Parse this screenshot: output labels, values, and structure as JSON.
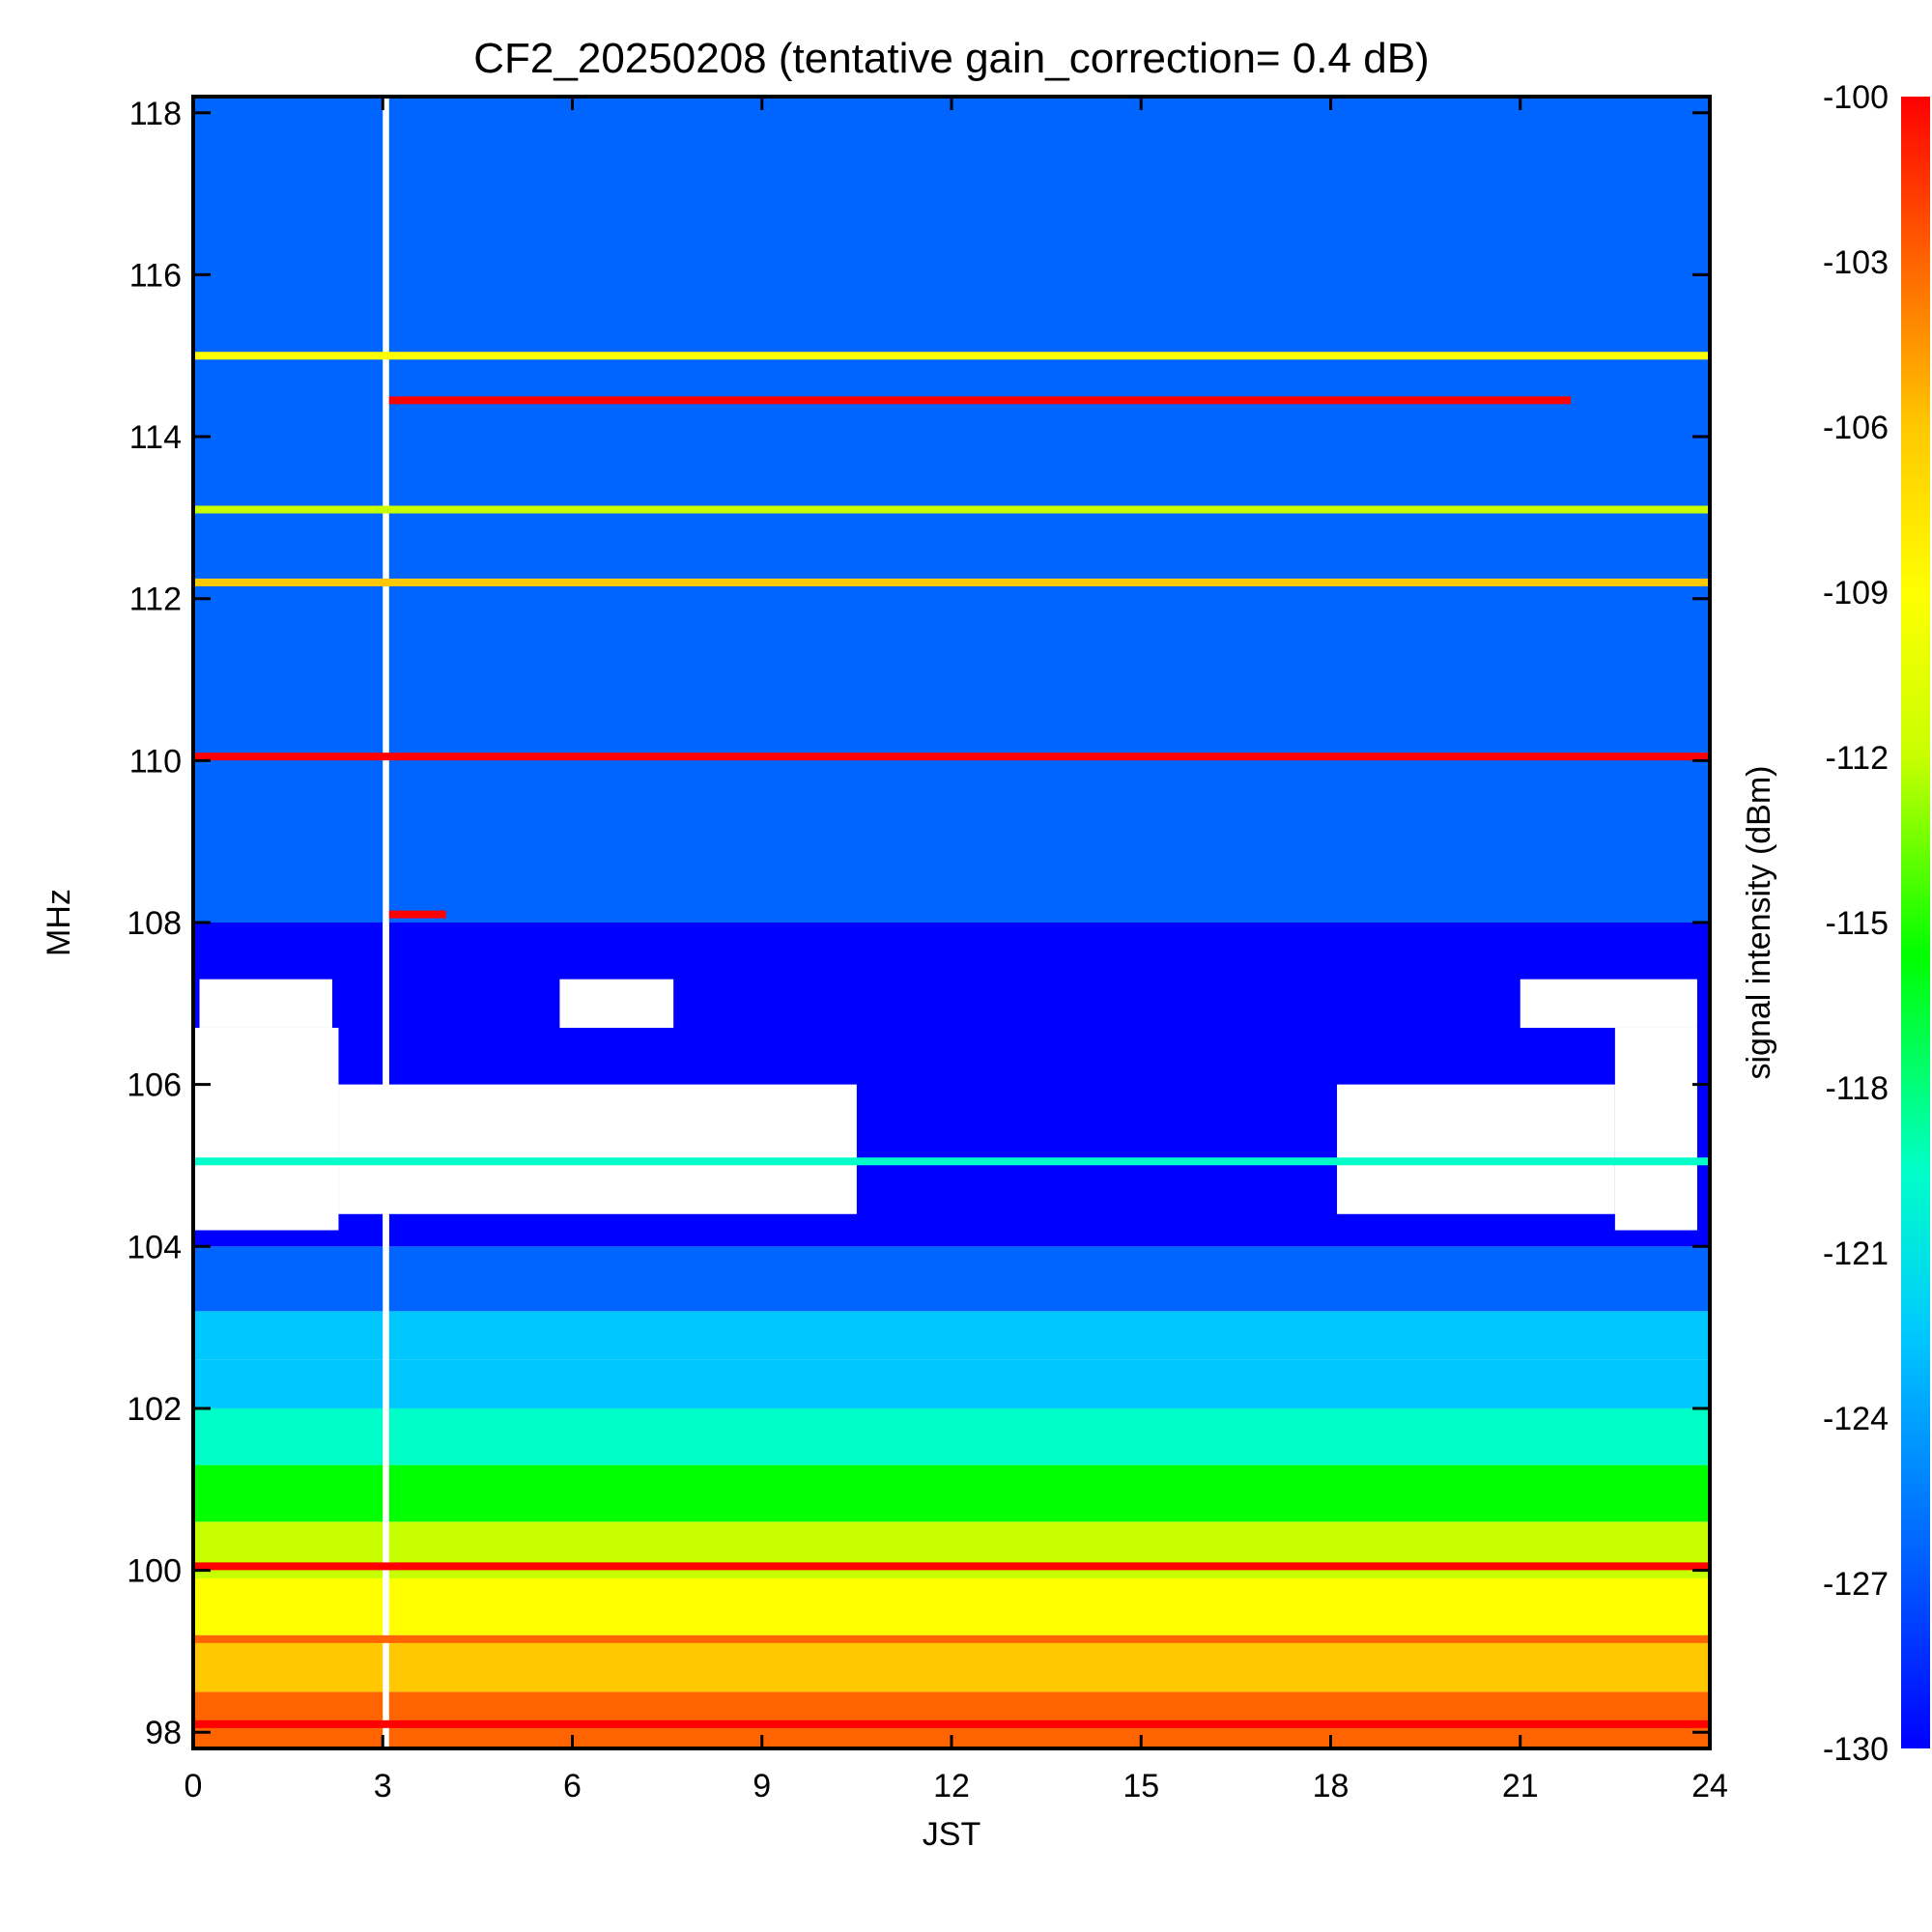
{
  "chart_data": {
    "type": "heatmap",
    "title": "CF2_20250208 (tentative gain_correction=  0.4 dB)",
    "xlabel": "JST",
    "ylabel": "MHz",
    "colorbar_label": "signal intensity (dBm)",
    "xlim": [
      0,
      24
    ],
    "ylim": [
      97.8,
      118.2
    ],
    "x_ticks": [
      "0",
      "3",
      "6",
      "9",
      "12",
      "15",
      "18",
      "21",
      "24"
    ],
    "y_ticks": [
      "98",
      "100",
      "102",
      "104",
      "106",
      "108",
      "110",
      "112",
      "114",
      "116",
      "118"
    ],
    "colorbar_range": [
      -130,
      -100
    ],
    "colorbar_ticks": [
      "-100",
      "-103",
      "-106",
      "-109",
      "-112",
      "-115",
      "-118",
      "-121",
      "-124",
      "-127",
      "-130"
    ],
    "colormap": [
      "#0000ff",
      "#0064ff",
      "#00c8ff",
      "#00ffc8",
      "#00ff00",
      "#c8ff00",
      "#ffff00",
      "#ffc800",
      "#ff6400",
      "#ff0000"
    ],
    "background_bands": [
      {
        "f0": 97.8,
        "f1": 98.5,
        "dbm": -102
      },
      {
        "f0": 98.5,
        "f1": 99.2,
        "dbm": -107
      },
      {
        "f0": 99.2,
        "f1": 99.9,
        "dbm": -111
      },
      {
        "f0": 99.9,
        "f1": 100.6,
        "dbm": -114
      },
      {
        "f0": 100.6,
        "f1": 101.3,
        "dbm": -116
      },
      {
        "f0": 101.3,
        "f1": 102.0,
        "dbm": -119
      },
      {
        "f0": 102.0,
        "f1": 102.6,
        "dbm": -123
      },
      {
        "f0": 102.6,
        "f1": 103.2,
        "dbm": -125
      },
      {
        "f0": 103.2,
        "f1": 104.0,
        "dbm": -127
      },
      {
        "f0": 104.0,
        "f1": 108.0,
        "dbm": -129
      },
      {
        "f0": 108.0,
        "f1": 118.2,
        "dbm": -127
      }
    ],
    "strong_signals": [
      {
        "freq": 114.45,
        "t0": 3.1,
        "t1": 21.8,
        "dbm": -100
      },
      {
        "freq": 112.2,
        "t0": 0,
        "t1": 24,
        "dbm": -108
      },
      {
        "freq": 115.0,
        "t0": 0,
        "t1": 24,
        "dbm": -110
      },
      {
        "freq": 113.1,
        "t0": 0,
        "t1": 24,
        "dbm": -115
      },
      {
        "freq": 110.05,
        "t0": 0,
        "t1": 24,
        "dbm": -100
      },
      {
        "freq": 108.1,
        "t0": 3.1,
        "t1": 4.0,
        "dbm": -100
      },
      {
        "freq": 105.05,
        "t0": 0,
        "t1": 24,
        "dbm": -120
      },
      {
        "freq": 100.05,
        "t0": 0,
        "t1": 24,
        "dbm": -100
      },
      {
        "freq": 99.15,
        "t0": 0,
        "t1": 24,
        "dbm": -102
      },
      {
        "freq": 98.1,
        "t0": 0,
        "t1": 24,
        "dbm": -100
      }
    ],
    "data_gaps": [
      {
        "f0": 104.2,
        "f1": 106.7,
        "t0": 0,
        "t1": 2.3
      },
      {
        "f0": 104.2,
        "f1": 106.7,
        "t0": 22.5,
        "t1": 23.8
      },
      {
        "f0": 104.4,
        "f1": 106.0,
        "t0": 2.3,
        "t1": 10.5
      },
      {
        "f0": 104.4,
        "f1": 106.0,
        "t0": 18.1,
        "t1": 22.5
      },
      {
        "f0": 106.7,
        "f1": 107.3,
        "t0": 0.1,
        "t1": 2.2
      },
      {
        "f0": 106.7,
        "f1": 107.3,
        "t0": 5.8,
        "t1": 7.6
      },
      {
        "f0": 106.7,
        "f1": 107.3,
        "t0": 21.0,
        "t1": 23.8
      },
      {
        "f0": 104.0,
        "f1": 108.0,
        "t0": 3.0,
        "t1": 3.1
      },
      {
        "f0": 97.8,
        "f1": 118.2,
        "t0": 3.0,
        "t1": 3.1
      }
    ]
  }
}
